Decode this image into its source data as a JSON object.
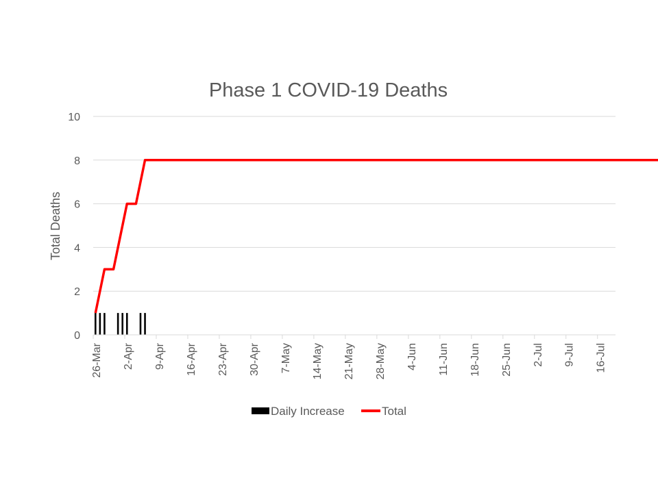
{
  "chart_data": {
    "type": "bar+line",
    "title": "Phase 1 COVID-19 Deaths",
    "ylabel": "Total Deaths",
    "xlabel": "",
    "ylim": [
      0,
      10
    ],
    "yticks": [
      "0",
      "2",
      "4",
      "6",
      "8",
      "10"
    ],
    "ytick_values": [
      0,
      2,
      4,
      6,
      8,
      10
    ],
    "x_tick_labels": [
      "26-Mar",
      "2-Apr",
      "9-Apr",
      "16-Apr",
      "23-Apr",
      "30-Apr",
      "7-May",
      "14-May",
      "21-May",
      "28-May",
      "4-Jun",
      "11-Jun",
      "18-Jun",
      "25-Jun",
      "2-Jul",
      "9-Jul",
      "16-Jul"
    ],
    "x_tick_interval_days": 7,
    "n_days": 116,
    "grid": true,
    "legend_position": "bottom",
    "series": [
      {
        "name": "Daily Increase",
        "type": "bar",
        "color": "#000000",
        "values": [
          1,
          1,
          1,
          0,
          0,
          1,
          1,
          1,
          0,
          0,
          1,
          1,
          0,
          0,
          0,
          0,
          0,
          0,
          0,
          0,
          0,
          0,
          0,
          0,
          0,
          0,
          0,
          0,
          0,
          0,
          0,
          0,
          0,
          0,
          0,
          0,
          0,
          0,
          0,
          0,
          0,
          0,
          0,
          0,
          0,
          0,
          0,
          0,
          0,
          0,
          0,
          0,
          0,
          0,
          0,
          0,
          0,
          0,
          0,
          0,
          0,
          0,
          0,
          0,
          0,
          0,
          0,
          0,
          0,
          0,
          0,
          0,
          0,
          0,
          0,
          0,
          0,
          0,
          0,
          0,
          0,
          0,
          0,
          0,
          0,
          0,
          0,
          0,
          0,
          0,
          0,
          0,
          0,
          0,
          0,
          0,
          0,
          0,
          0,
          0,
          0,
          0,
          0,
          0,
          0,
          0,
          0,
          0,
          0,
          0,
          0,
          0,
          0,
          0,
          0,
          0,
          0,
          0,
          0,
          0,
          0,
          0,
          0,
          0,
          0,
          0
        ]
      },
      {
        "name": "Total",
        "type": "line",
        "color": "#ff0000",
        "values": [
          1,
          2,
          3,
          3,
          3,
          4,
          5,
          6,
          6,
          6,
          7,
          8,
          8,
          8,
          8,
          8,
          8,
          8,
          8,
          8,
          8,
          8,
          8,
          8,
          8,
          8,
          8,
          8,
          8,
          8,
          8,
          8,
          8,
          8,
          8,
          8,
          8,
          8,
          8,
          8,
          8,
          8,
          8,
          8,
          8,
          8,
          8,
          8,
          8,
          8,
          8,
          8,
          8,
          8,
          8,
          8,
          8,
          8,
          8,
          8,
          8,
          8,
          8,
          8,
          8,
          8,
          8,
          8,
          8,
          8,
          8,
          8,
          8,
          8,
          8,
          8,
          8,
          8,
          8,
          8,
          8,
          8,
          8,
          8,
          8,
          8,
          8,
          8,
          8,
          8,
          8,
          8,
          8,
          8,
          8,
          8,
          8,
          8,
          8,
          8,
          8,
          8,
          8,
          8,
          8,
          8,
          8,
          8,
          8,
          8,
          8,
          8,
          8,
          8,
          8,
          8,
          8,
          8,
          8,
          8,
          8,
          8,
          8,
          8,
          8,
          8
        ]
      }
    ]
  }
}
